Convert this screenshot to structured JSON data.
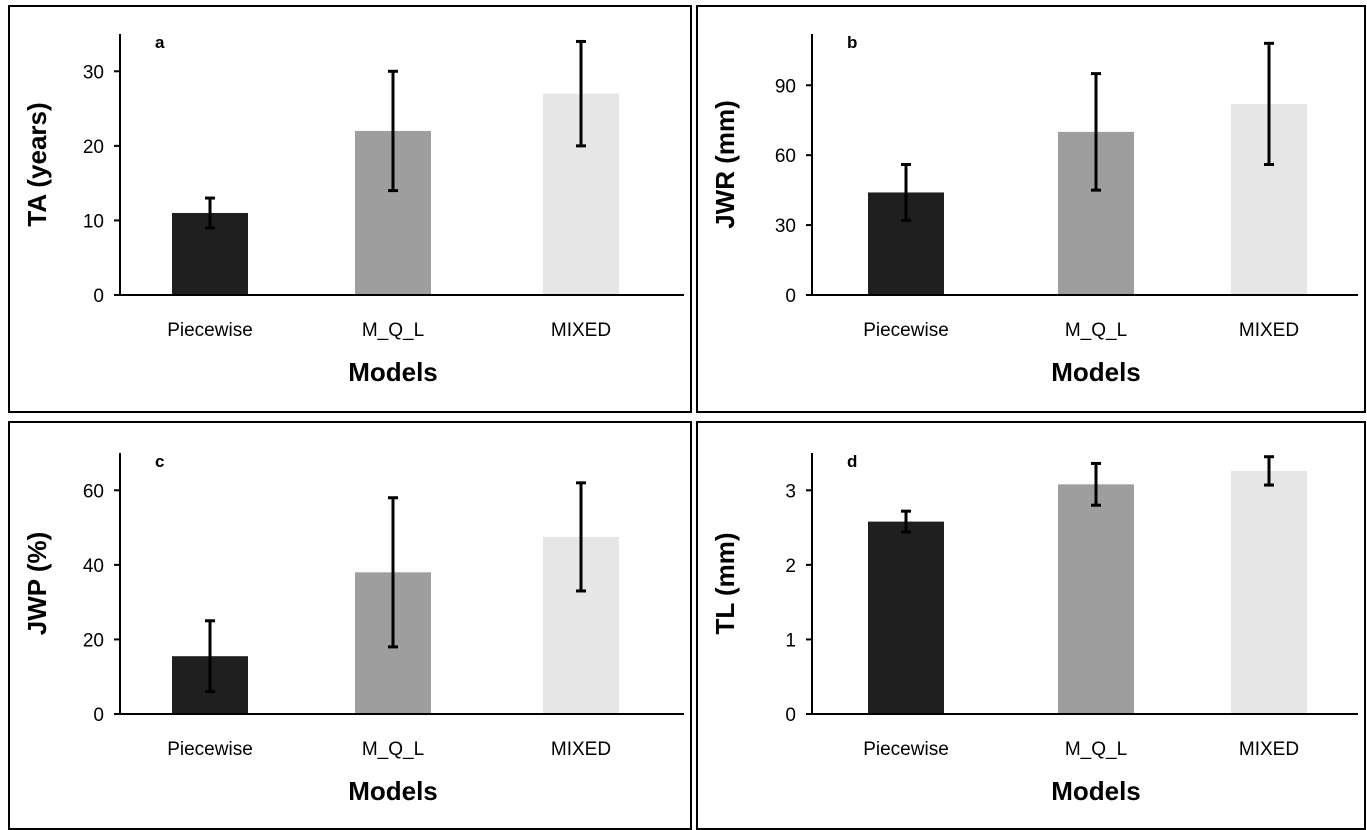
{
  "colors": {
    "bar1": "#1f1f1f",
    "bar2": "#9e9e9e",
    "bar3": "#e6e6e6",
    "axis": "#000000",
    "error": "#000000"
  },
  "chart_data": [
    {
      "type": "bar",
      "panel": "a",
      "categories": [
        "Piecewise",
        "M_Q_L",
        "MIXED"
      ],
      "values": [
        11,
        22,
        27
      ],
      "error_low": [
        9,
        14,
        20
      ],
      "error_high": [
        13,
        30,
        34
      ],
      "xlabel": "Models",
      "ylabel": "TA (years)",
      "ylim": [
        0,
        35
      ],
      "yticks": [
        0,
        10,
        20,
        30
      ],
      "grid": false,
      "legend": "none"
    },
    {
      "type": "bar",
      "panel": "b",
      "categories": [
        "Piecewise",
        "M_Q_L",
        "MIXED"
      ],
      "values": [
        44,
        70,
        82
      ],
      "error_low": [
        32,
        45,
        56
      ],
      "error_high": [
        56,
        95,
        108
      ],
      "xlabel": "Models",
      "ylabel": "JWR (mm)",
      "ylim": [
        0,
        112
      ],
      "yticks": [
        0,
        30,
        60,
        90
      ],
      "grid": false,
      "legend": "none"
    },
    {
      "type": "bar",
      "panel": "c",
      "categories": [
        "Piecewise",
        "M_Q_L",
        "MIXED"
      ],
      "values": [
        15.5,
        38,
        47.5
      ],
      "error_low": [
        6,
        18,
        33
      ],
      "error_high": [
        25,
        58,
        62
      ],
      "xlabel": "Models",
      "ylabel": "JWP (%)",
      "ylim": [
        0,
        70
      ],
      "yticks": [
        0,
        20,
        40,
        60
      ],
      "grid": false,
      "legend": "none"
    },
    {
      "type": "bar",
      "panel": "d",
      "categories": [
        "Piecewise",
        "M_Q_L",
        "MIXED"
      ],
      "values": [
        2.58,
        3.08,
        3.26
      ],
      "error_low": [
        2.44,
        2.8,
        3.07
      ],
      "error_high": [
        2.72,
        3.36,
        3.45
      ],
      "xlabel": "Models",
      "ylabel": "TL (mm)",
      "ylim": [
        0,
        3.5
      ],
      "yticks": [
        0,
        1,
        2,
        3
      ],
      "grid": false,
      "legend": "none"
    }
  ]
}
